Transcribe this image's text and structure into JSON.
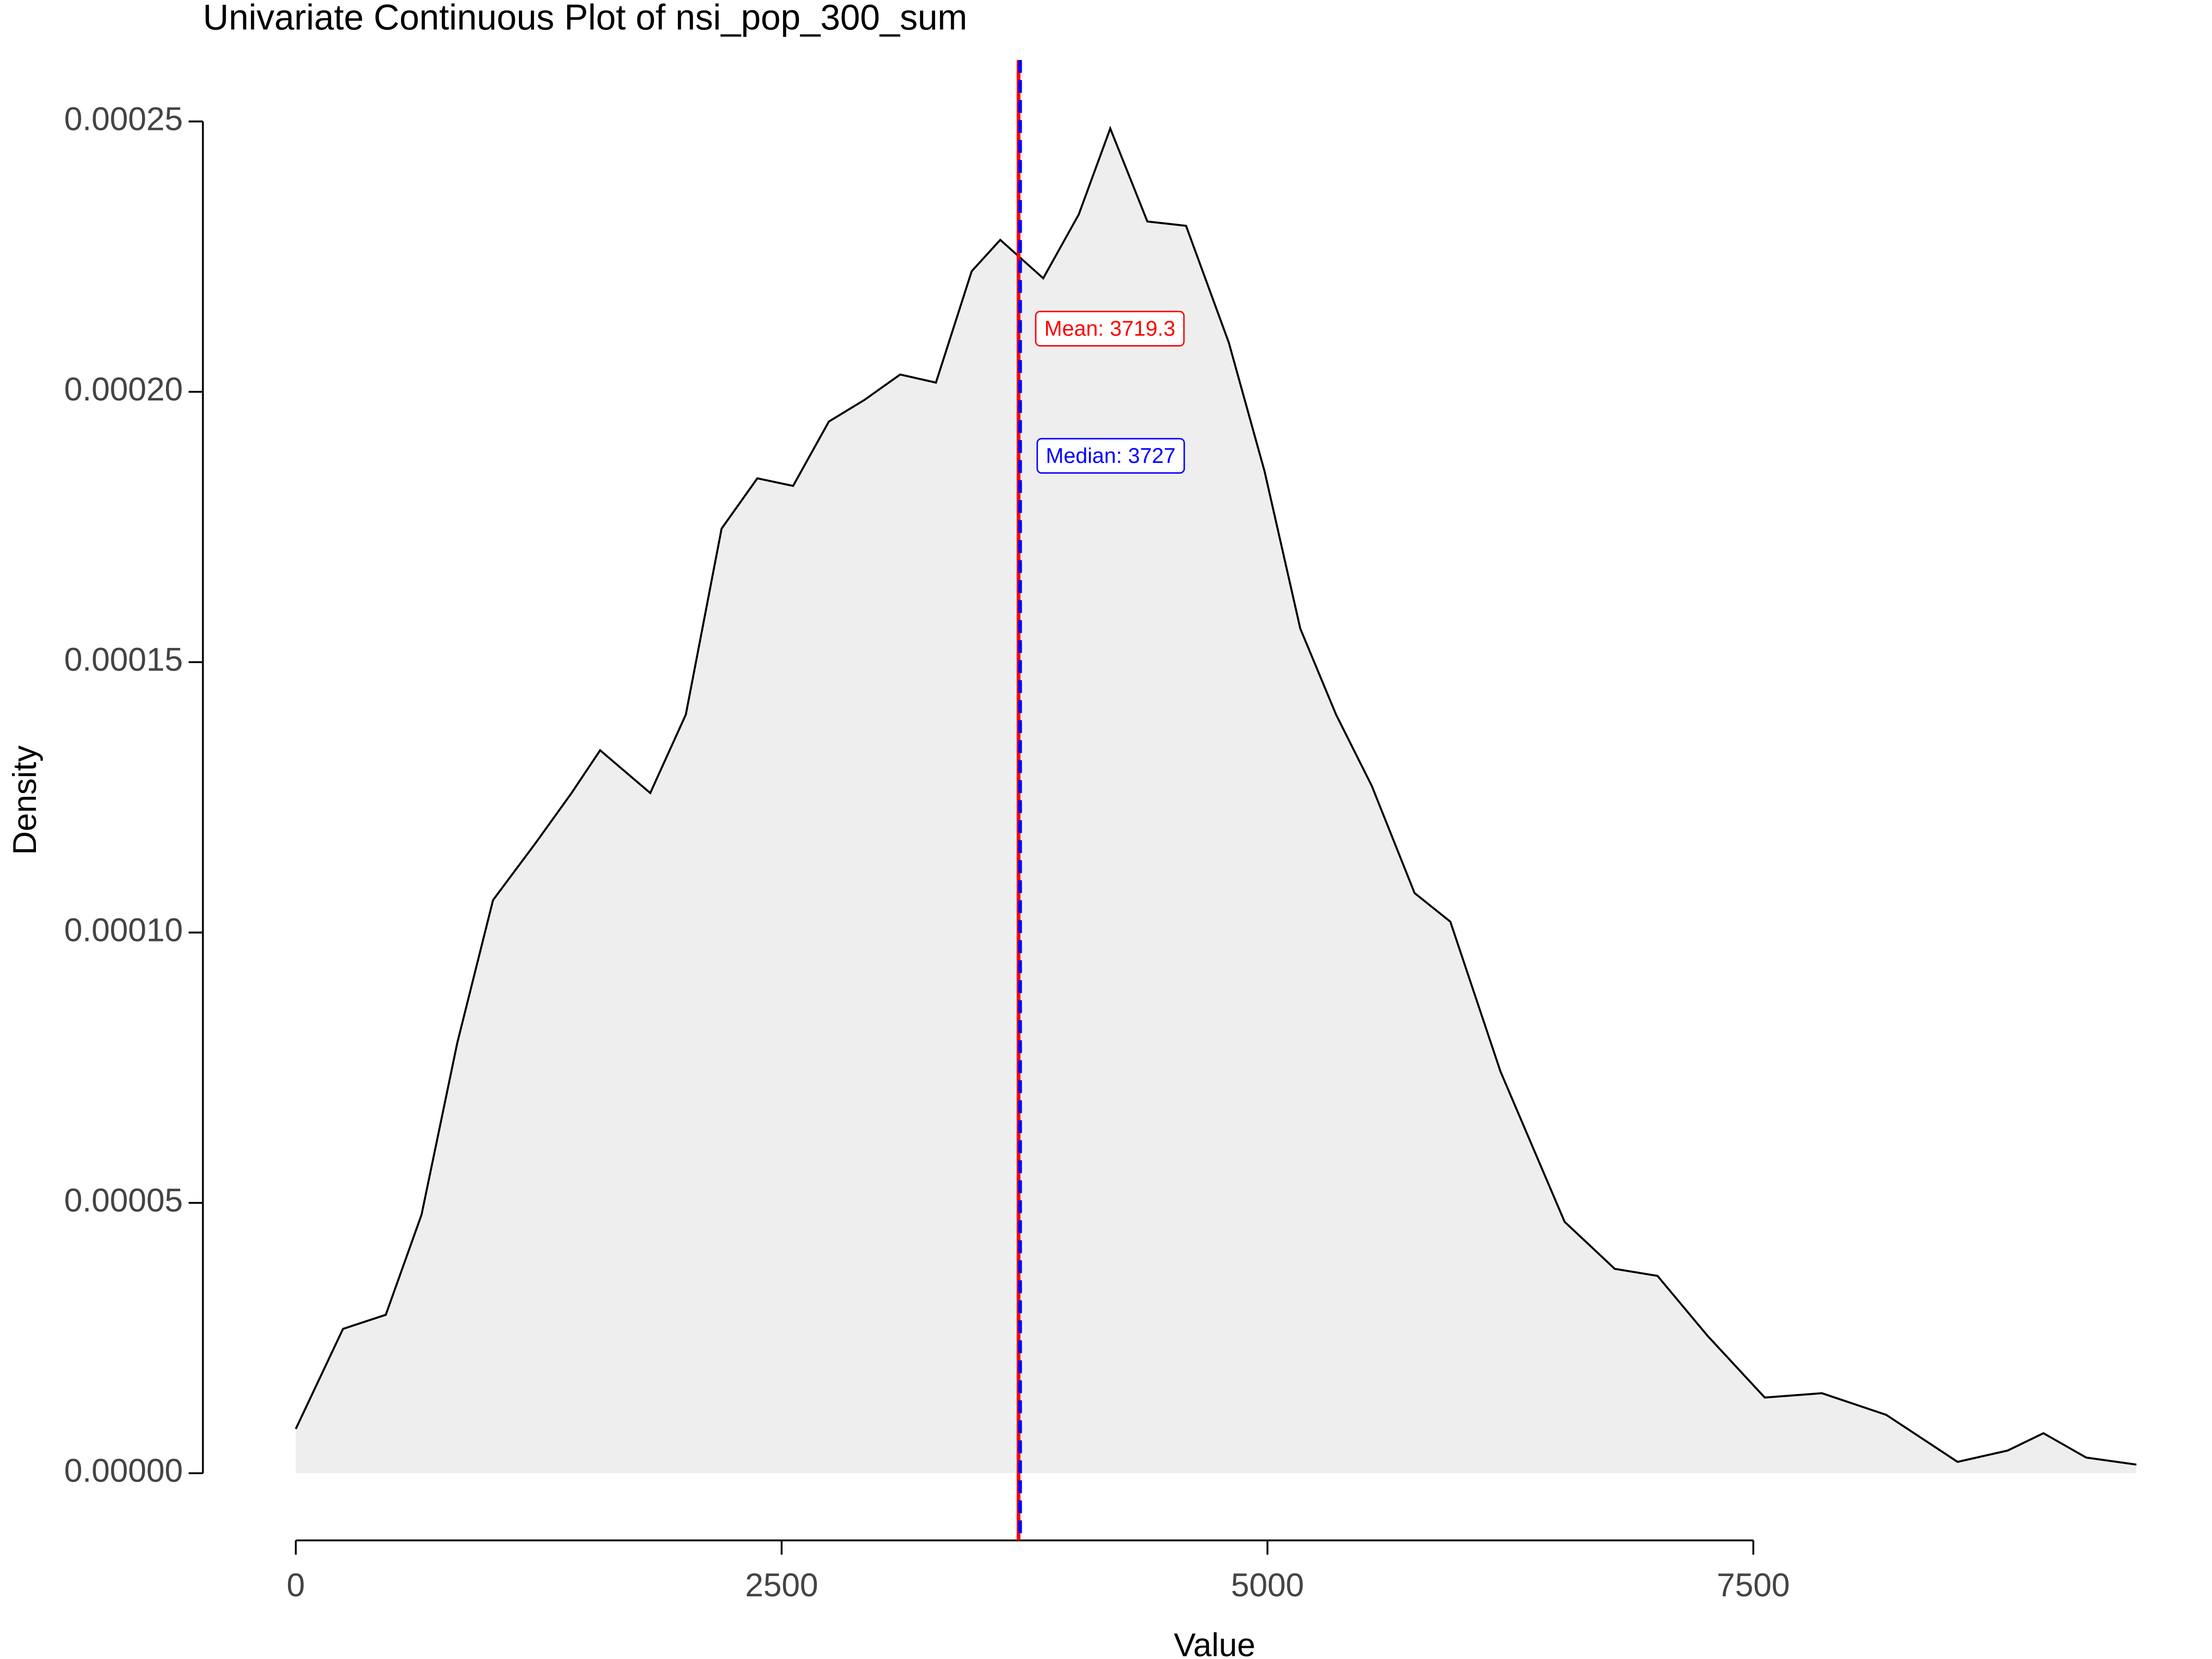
{
  "chart_data": {
    "type": "density",
    "title": "Univariate Continuous Plot of nsi_pop_300_sum",
    "x_label": "Value",
    "y_label": "Density",
    "x": [
      0,
      243,
      463,
      647,
      831,
      1015,
      1235,
      1419,
      1566,
      1824,
      2007,
      2191,
      2375,
      2559,
      2743,
      2926,
      3110,
      3294,
      3478,
      3625,
      3846,
      4029,
      4191,
      4382,
      4581,
      4801,
      4985,
      5169,
      5353,
      5537,
      5757,
      5941,
      6199,
      6529,
      6787,
      7007,
      7265,
      7559,
      7853,
      8184,
      8551,
      8809,
      8993,
      9213,
      9471
    ],
    "values": [
      8.2e-06,
      2.67e-05,
      2.93e-05,
      4.78e-05,
      7.96e-05,
      0.000106,
      0.0001166,
      0.0001258,
      0.0001337,
      0.0001258,
      0.0001403,
      0.0001747,
      0.000184,
      0.0001826,
      0.0001945,
      0.0001985,
      0.0002032,
      0.0002017,
      0.0002223,
      0.0002281,
      0.000221,
      0.0002328,
      0.0002487,
      0.0002315,
      0.0002307,
      0.0002091,
      0.0001853,
      0.0001562,
      0.0001403,
      0.0001271,
      0.0001073,
      0.000102,
      7.43e-05,
      4.65e-05,
      3.78e-05,
      3.65e-05,
      2.54e-05,
      1.4e-05,
      1.48e-05,
      1.08e-05,
      2.1e-06,
      4.2e-06,
      7.4e-06,
      2.9e-06,
      1.6e-06
    ],
    "color": "#000000",
    "fill": "#eeeeee",
    "xlim": [
      0,
      7500
    ],
    "xticks": [
      0,
      2500,
      5000,
      7500
    ],
    "ylim": [
      0,
      0.00025
    ],
    "yticks": [
      {
        "value": 0,
        "label": "0.00000"
      },
      5e-05,
      {
        "value": 0.0001,
        "label": "0.00010"
      },
      0.00015,
      {
        "value": 0.0002,
        "label": "0.00020"
      },
      0.00025
    ],
    "annotations": [
      {
        "value": 3719.3,
        "label": "Mean: 3719.3",
        "color": "#ff0000",
        "dashed": false
      },
      {
        "value": 3727,
        "label": "Median: 3727",
        "color": "#0000ff",
        "dashed": true
      }
    ]
  }
}
